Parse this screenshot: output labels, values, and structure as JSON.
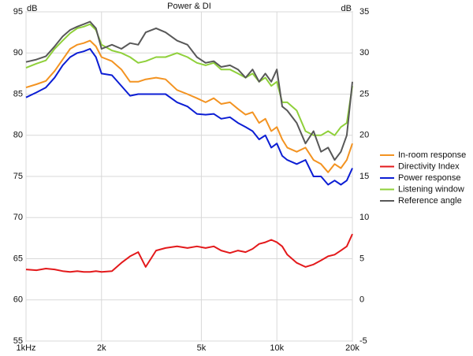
{
  "chart_data": {
    "type": "line",
    "title": "Power & DI",
    "y_label": "dB",
    "y2_label": "dB",
    "x_scale": "log",
    "grid": true,
    "legend_position": "right",
    "x": [
      1000,
      1100,
      1200,
      1300,
      1400,
      1500,
      1600,
      1700,
      1800,
      1900,
      2000,
      2200,
      2400,
      2600,
      2800,
      3000,
      3300,
      3600,
      4000,
      4400,
      4800,
      5200,
      5600,
      6000,
      6500,
      7000,
      7500,
      8000,
      8500,
      9000,
      9500,
      10000,
      10500,
      11000,
      12000,
      13000,
      14000,
      15000,
      16000,
      17000,
      18000,
      19000,
      20000
    ],
    "xlim": [
      1000,
      20000
    ],
    "xticks": [
      {
        "value": 1000,
        "label": "1kHz"
      },
      {
        "value": 2000,
        "label": "2k"
      },
      {
        "value": 5000,
        "label": "5k"
      },
      {
        "value": 10000,
        "label": "10k"
      },
      {
        "value": 20000,
        "label": "20k"
      }
    ],
    "ylim": [
      55,
      95
    ],
    "yticks": [
      55,
      60,
      65,
      70,
      75,
      80,
      85,
      90,
      95
    ],
    "y2lim": [
      -5,
      35
    ],
    "y2ticks": [
      -5,
      0,
      5,
      10,
      15,
      20,
      25,
      30,
      35
    ],
    "series": [
      {
        "name": "In-room response",
        "color": "#f39321",
        "values": [
          85.8,
          86.2,
          86.6,
          87.8,
          89.2,
          90.5,
          91.0,
          91.2,
          91.5,
          90.8,
          89.5,
          89.0,
          88.0,
          86.5,
          86.5,
          86.8,
          87.0,
          86.8,
          85.5,
          85.0,
          84.5,
          84.0,
          84.5,
          83.8,
          84.0,
          83.2,
          82.5,
          82.8,
          81.5,
          82.0,
          80.5,
          81.0,
          79.5,
          78.5,
          78.0,
          78.5,
          77.0,
          76.5,
          75.5,
          76.5,
          76.0,
          77.0,
          79.0
        ]
      },
      {
        "name": "Directivity Index",
        "color": "#e3191b",
        "axis": "y2",
        "values": [
          3.7,
          3.6,
          3.8,
          3.7,
          3.5,
          3.4,
          3.5,
          3.4,
          3.4,
          3.5,
          3.4,
          3.5,
          4.5,
          5.3,
          5.8,
          4.0,
          6.0,
          6.3,
          6.5,
          6.3,
          6.5,
          6.3,
          6.5,
          6.0,
          5.7,
          6.0,
          5.8,
          6.2,
          6.8,
          7.0,
          7.3,
          7.0,
          6.5,
          5.5,
          4.5,
          4.0,
          4.3,
          4.8,
          5.3,
          5.5,
          6.0,
          6.5,
          8.0
        ]
      },
      {
        "name": "Power response",
        "color": "#0c1ed4",
        "values": [
          84.6,
          85.2,
          85.8,
          87.0,
          88.5,
          89.5,
          90.0,
          90.2,
          90.5,
          89.5,
          87.5,
          87.3,
          86.0,
          84.8,
          85.0,
          85.0,
          85.0,
          85.0,
          84.0,
          83.5,
          82.6,
          82.5,
          82.6,
          82.0,
          82.2,
          81.5,
          81.0,
          80.5,
          79.5,
          80.0,
          78.5,
          79.0,
          77.5,
          77.0,
          76.5,
          77.0,
          75.0,
          75.0,
          74.0,
          74.5,
          74.0,
          74.5,
          76.0
        ]
      },
      {
        "name": "Listening window",
        "color": "#8fd03a",
        "values": [
          88.2,
          88.7,
          89.1,
          90.5,
          91.5,
          92.4,
          93.0,
          93.2,
          93.5,
          92.8,
          91.0,
          90.3,
          90.0,
          89.5,
          88.8,
          89.0,
          89.5,
          89.5,
          90.0,
          89.5,
          88.8,
          88.5,
          88.8,
          88.0,
          88.0,
          87.5,
          87.0,
          87.5,
          86.5,
          87.0,
          86.0,
          86.5,
          84.0,
          84.0,
          83.0,
          80.5,
          80.0,
          80.0,
          80.5,
          80.0,
          81.0,
          81.5,
          86.0
        ]
      },
      {
        "name": "Reference angle",
        "color": "#585858",
        "values": [
          88.9,
          89.2,
          89.6,
          90.8,
          92.0,
          92.8,
          93.2,
          93.5,
          93.8,
          93.0,
          90.5,
          91.0,
          90.5,
          91.2,
          91.0,
          92.5,
          93.0,
          92.5,
          91.5,
          91.0,
          89.5,
          88.8,
          89.0,
          88.3,
          88.5,
          88.0,
          87.0,
          88.0,
          86.5,
          87.5,
          86.5,
          88.0,
          83.5,
          83.0,
          81.5,
          79.0,
          80.5,
          78.0,
          78.5,
          77.0,
          78.0,
          80.0,
          86.5
        ]
      }
    ]
  }
}
